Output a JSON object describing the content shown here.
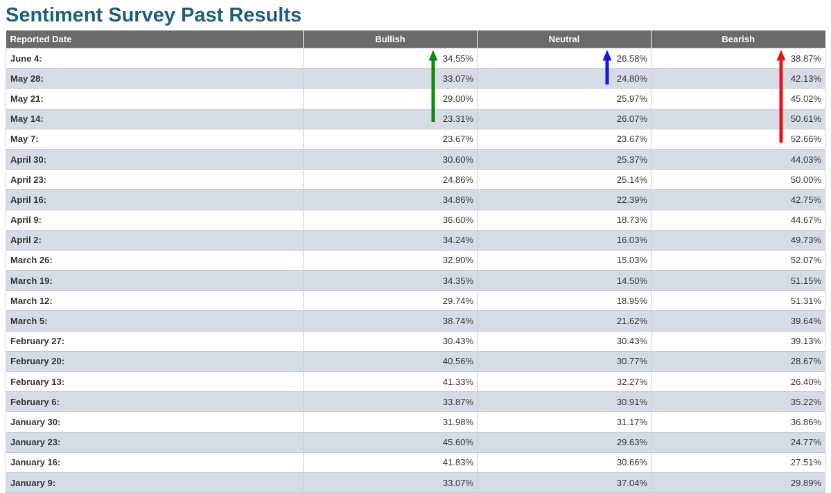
{
  "page_title": "Sentiment Survey Past Results",
  "colors": {
    "title_text": "#1f5d7f",
    "header_bg": "#6a6a6a",
    "header_text": "#ffffff",
    "row_bg": "#ffffff",
    "row_alt_bg": "#d6dce6",
    "cell_border": "#c6cdd8",
    "body_text": "#333333",
    "arrow_green": "#0d8a0d",
    "arrow_blue": "#1414ee",
    "arrow_red": "#ee1111"
  },
  "table": {
    "columns": [
      "Reported Date",
      "Bullish",
      "Neutral",
      "Bearish"
    ],
    "rows": [
      {
        "date": "June 4:",
        "bullish": "34.55%",
        "neutral": "26.58%",
        "bearish": "38.87%"
      },
      {
        "date": "May 28:",
        "bullish": "33.07%",
        "neutral": "24.80%",
        "bearish": "42.13%"
      },
      {
        "date": "May 21:",
        "bullish": "29.00%",
        "neutral": "25.97%",
        "bearish": "45.02%"
      },
      {
        "date": "May 14:",
        "bullish": "23.31%",
        "neutral": "26.07%",
        "bearish": "50.61%"
      },
      {
        "date": "May 7:",
        "bullish": "23.67%",
        "neutral": "23.67%",
        "bearish": "52.66%"
      },
      {
        "date": "April 30:",
        "bullish": "30.60%",
        "neutral": "25.37%",
        "bearish": "44.03%"
      },
      {
        "date": "April 23:",
        "bullish": "24.86%",
        "neutral": "25.14%",
        "bearish": "50.00%"
      },
      {
        "date": "April 16:",
        "bullish": "34.86%",
        "neutral": "22.39%",
        "bearish": "42.75%"
      },
      {
        "date": "April 9:",
        "bullish": "36.60%",
        "neutral": "18.73%",
        "bearish": "44.67%"
      },
      {
        "date": "April 2:",
        "bullish": "34.24%",
        "neutral": "16.03%",
        "bearish": "49.73%"
      },
      {
        "date": "March 26:",
        "bullish": "32.90%",
        "neutral": "15.03%",
        "bearish": "52.07%"
      },
      {
        "date": "March 19:",
        "bullish": "34.35%",
        "neutral": "14.50%",
        "bearish": "51.15%"
      },
      {
        "date": "March 12:",
        "bullish": "29.74%",
        "neutral": "18.95%",
        "bearish": "51.31%"
      },
      {
        "date": "March 5:",
        "bullish": "38.74%",
        "neutral": "21.62%",
        "bearish": "39.64%"
      },
      {
        "date": "February 27:",
        "bullish": "30.43%",
        "neutral": "30.43%",
        "bearish": "39.13%"
      },
      {
        "date": "February 20:",
        "bullish": "40.56%",
        "neutral": "30.77%",
        "bearish": "28.67%"
      },
      {
        "date": "February 13:",
        "bullish": "41.33%",
        "neutral": "32.27%",
        "bearish": "26.40%"
      },
      {
        "date": "February 6:",
        "bullish": "33.87%",
        "neutral": "30.91%",
        "bearish": "35.22%"
      },
      {
        "date": "January 30:",
        "bullish": "31.98%",
        "neutral": "31.17%",
        "bearish": "36.86%"
      },
      {
        "date": "January 23:",
        "bullish": "45.60%",
        "neutral": "29.63%",
        "bearish": "24.77%"
      },
      {
        "date": "January 16:",
        "bullish": "41.83%",
        "neutral": "30.66%",
        "bearish": "27.51%"
      },
      {
        "date": "January 9:",
        "bullish": "33.07%",
        "neutral": "37.04%",
        "bearish": "29.89%"
      }
    ]
  },
  "arrows": [
    {
      "column": "Bullish",
      "direction": "up",
      "color": "#0d8a0d",
      "spans_rows": "June 4 to May 14"
    },
    {
      "column": "Neutral",
      "direction": "up",
      "color": "#1414ee",
      "spans_rows": "June 4 to May 28"
    },
    {
      "column": "Bearish",
      "direction": "up",
      "color": "#ee1111",
      "spans_rows": "June 4 to May 7"
    }
  ],
  "chart_data": {
    "type": "table",
    "title": "Sentiment Survey Past Results",
    "categories": [
      "June 4",
      "May 28",
      "May 21",
      "May 14",
      "May 7",
      "April 30",
      "April 23",
      "April 16",
      "April 9",
      "April 2",
      "March 26",
      "March 19",
      "March 12",
      "March 5",
      "February 27",
      "February 20",
      "February 13",
      "February 6",
      "January 30",
      "January 23",
      "January 16",
      "January 9"
    ],
    "series": [
      {
        "name": "Bullish",
        "values": [
          34.55,
          33.07,
          29.0,
          23.31,
          23.67,
          30.6,
          24.86,
          34.86,
          36.6,
          34.24,
          32.9,
          34.35,
          29.74,
          38.74,
          30.43,
          40.56,
          41.33,
          33.87,
          31.98,
          45.6,
          41.83,
          33.07
        ]
      },
      {
        "name": "Neutral",
        "values": [
          26.58,
          24.8,
          25.97,
          26.07,
          23.67,
          25.37,
          25.14,
          22.39,
          18.73,
          16.03,
          15.03,
          14.5,
          18.95,
          21.62,
          30.43,
          30.77,
          32.27,
          30.91,
          31.17,
          29.63,
          30.66,
          37.04
        ]
      },
      {
        "name": "Bearish",
        "values": [
          38.87,
          42.13,
          45.02,
          50.61,
          52.66,
          44.03,
          50.0,
          42.75,
          44.67,
          49.73,
          52.07,
          51.15,
          51.31,
          39.64,
          39.13,
          28.67,
          26.4,
          35.22,
          36.86,
          24.77,
          27.51,
          29.89
        ]
      }
    ],
    "annotations": [
      {
        "label": "up-arrow over recent Bullish values",
        "color": "#0d8a0d"
      },
      {
        "label": "up-arrow over recent Neutral values",
        "color": "#1414ee"
      },
      {
        "label": "up-arrow over recent Bearish values",
        "color": "#ee1111"
      }
    ]
  }
}
